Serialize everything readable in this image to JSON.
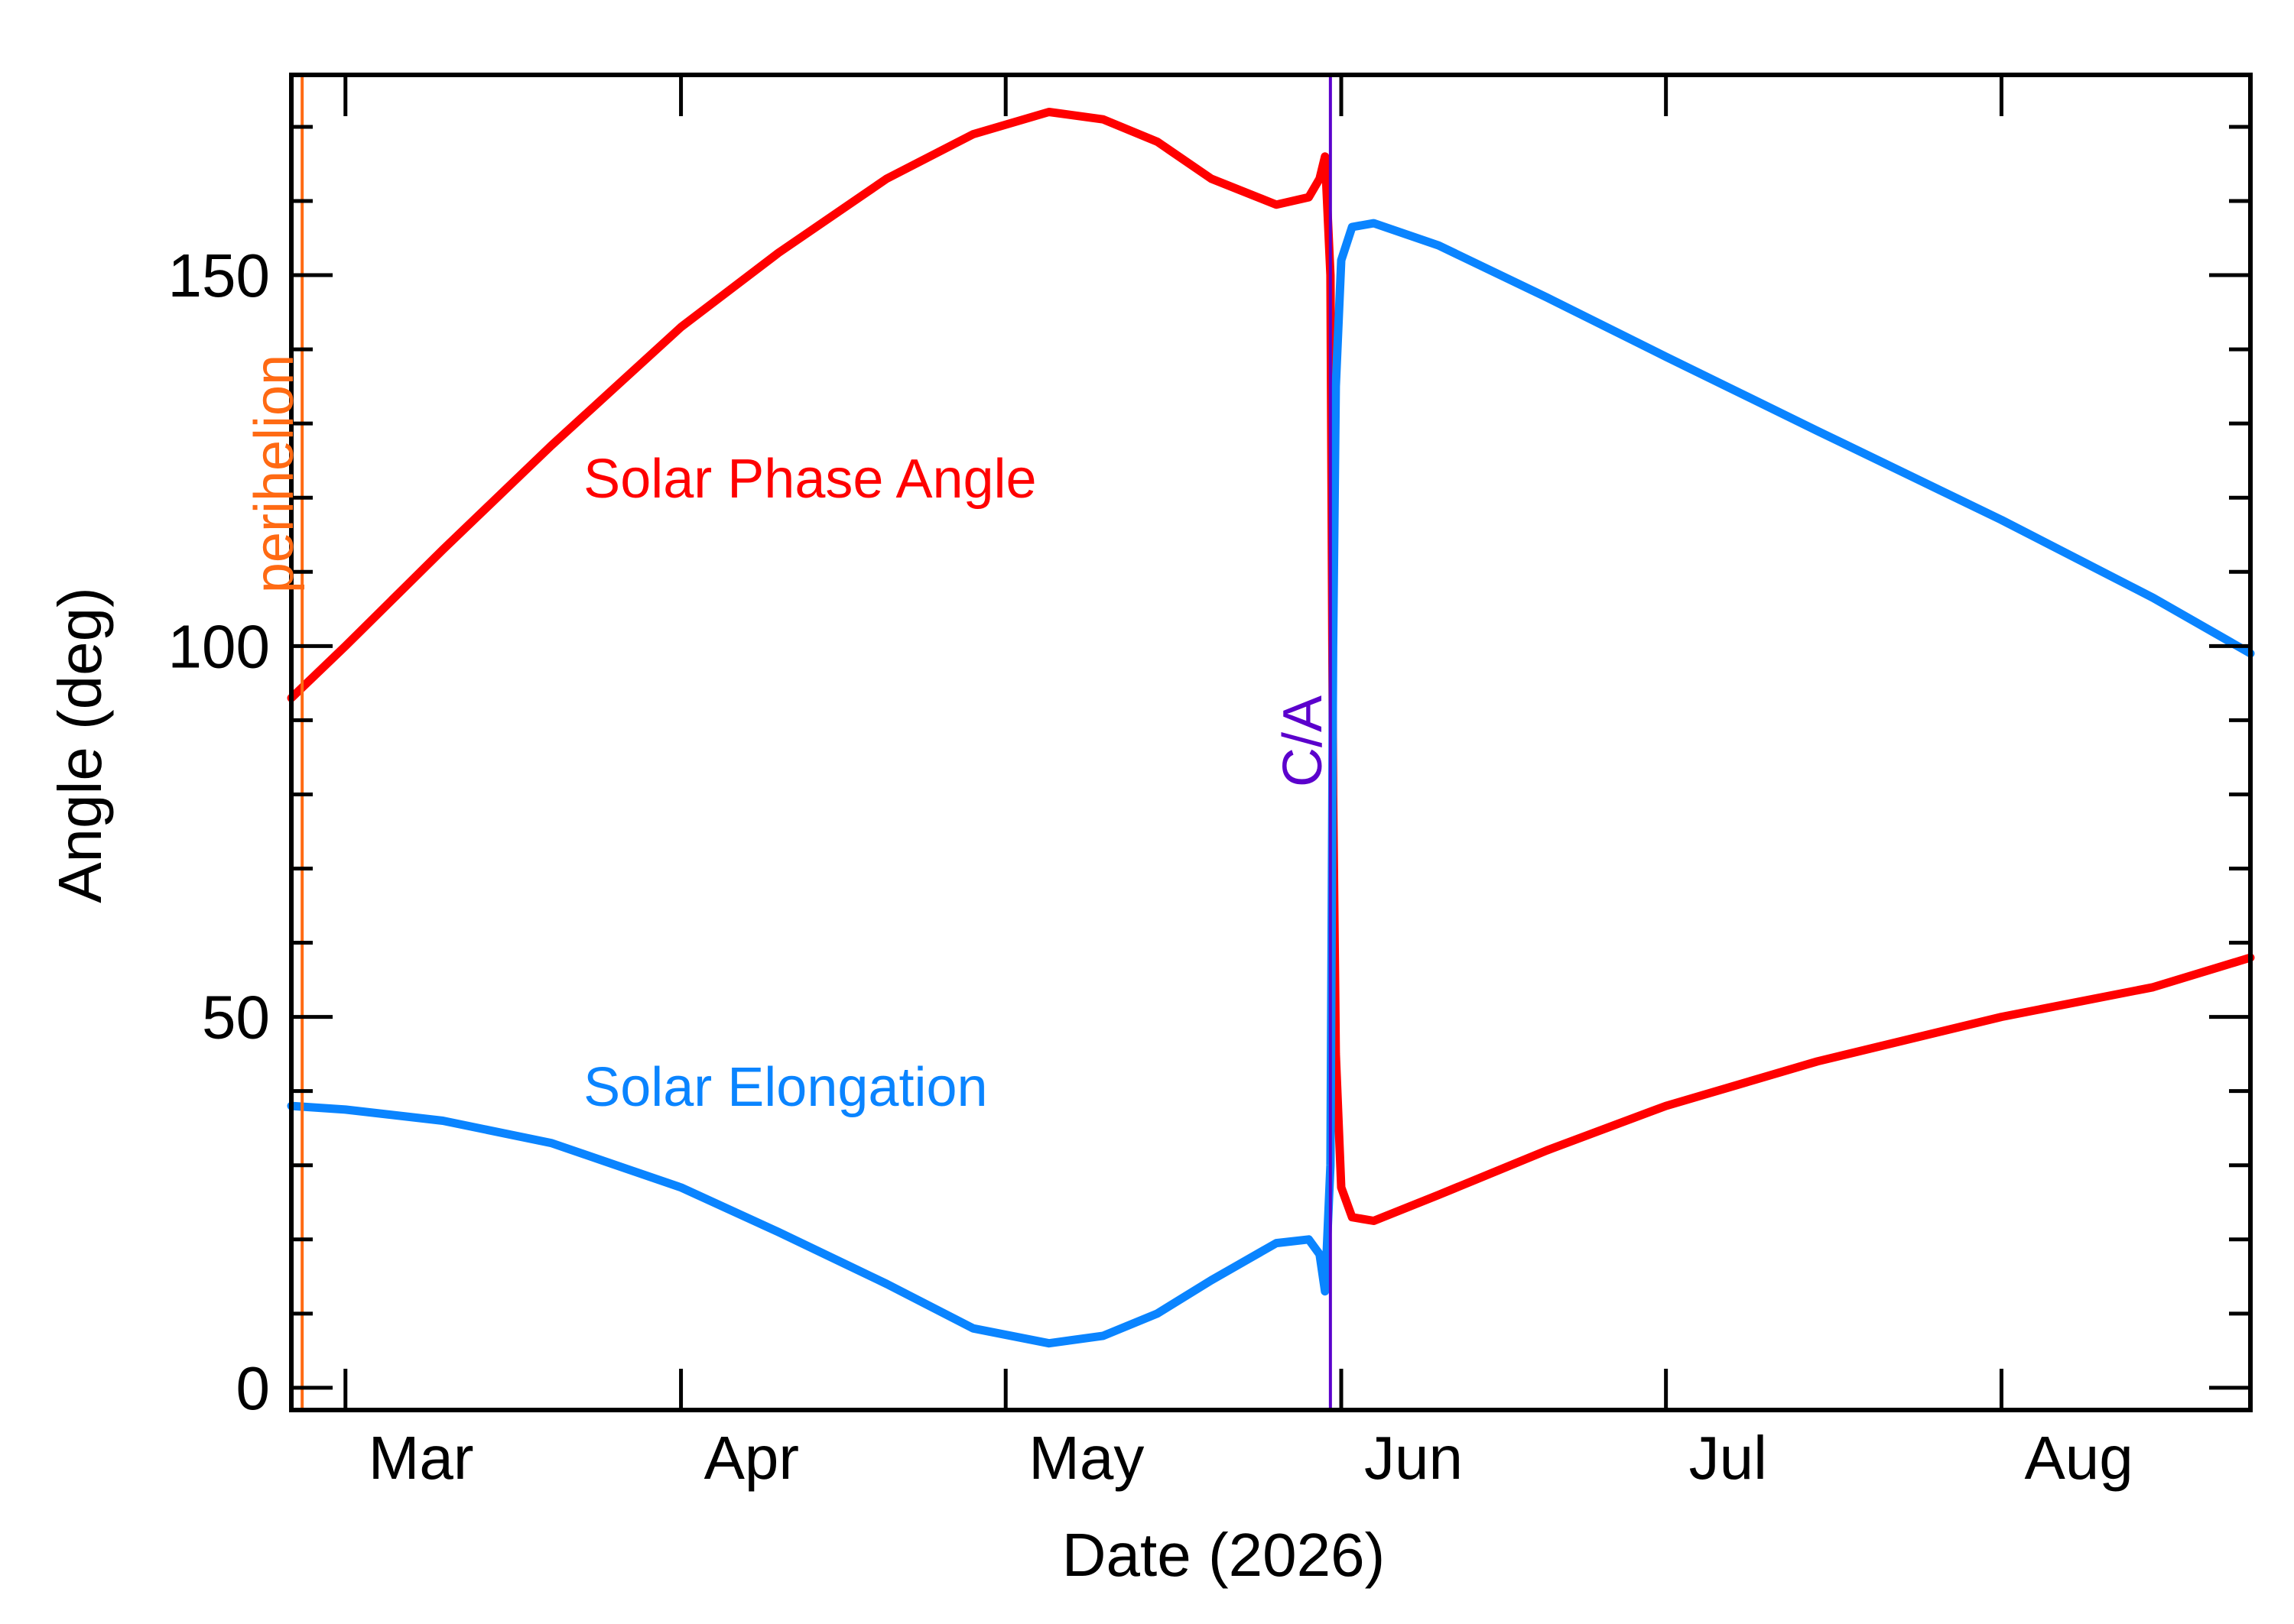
{
  "chart_data": {
    "type": "line",
    "xlabel": "Date (2026)",
    "ylabel": "Angle (deg)",
    "xlim": [
      "2026-02-24",
      "2026-08-24"
    ],
    "ylim": [
      -3,
      177
    ],
    "x_ticks": [
      {
        "date": "2026-03-01",
        "label": "Mar"
      },
      {
        "date": "2026-04-01",
        "label": "Apr"
      },
      {
        "date": "2026-05-01",
        "label": "May"
      },
      {
        "date": "2026-06-01",
        "label": "Jun"
      },
      {
        "date": "2026-07-01",
        "label": "Jul"
      },
      {
        "date": "2026-08-01",
        "label": "Aug"
      }
    ],
    "x_minor_tick_dates": [],
    "y_ticks": [
      {
        "value": 0,
        "label": "0"
      },
      {
        "value": 50,
        "label": "50"
      },
      {
        "value": 100,
        "label": "100"
      },
      {
        "value": 150,
        "label": "150"
      }
    ],
    "y_minor_step": 10,
    "series": [
      {
        "name": "Solar Phase Angle",
        "color": "#ff0000",
        "points": [
          [
            "2026-02-24",
            93
          ],
          [
            "2026-03-01",
            100
          ],
          [
            "2026-03-10",
            113
          ],
          [
            "2026-03-20",
            127
          ],
          [
            "2026-04-01",
            143
          ],
          [
            "2026-04-10",
            153
          ],
          [
            "2026-04-20",
            163
          ],
          [
            "2026-04-28",
            169
          ],
          [
            "2026-05-05",
            172
          ],
          [
            "2026-05-10",
            171
          ],
          [
            "2026-05-15",
            168
          ],
          [
            "2026-05-20",
            163
          ],
          [
            "2026-05-26",
            159.5
          ],
          [
            "2026-05-29",
            160.5
          ],
          [
            "2026-05-30",
            163
          ],
          [
            "2026-05-30T12:00",
            166
          ],
          [
            "2026-05-31",
            150
          ],
          [
            "2026-05-31T06:00",
            80
          ],
          [
            "2026-05-31T12:00",
            45
          ],
          [
            "2026-06-01",
            27
          ],
          [
            "2026-06-02",
            23
          ],
          [
            "2026-06-04",
            22.5
          ],
          [
            "2026-06-10",
            26
          ],
          [
            "2026-06-20",
            32
          ],
          [
            "2026-07-01",
            38
          ],
          [
            "2026-07-15",
            44
          ],
          [
            "2026-08-01",
            50
          ],
          [
            "2026-08-15",
            54
          ],
          [
            "2026-08-24",
            58
          ]
        ]
      },
      {
        "name": "Solar Elongation",
        "color": "#0a84ff",
        "points": [
          [
            "2026-02-24",
            38
          ],
          [
            "2026-03-01",
            37.5
          ],
          [
            "2026-03-10",
            36
          ],
          [
            "2026-03-20",
            33
          ],
          [
            "2026-04-01",
            27
          ],
          [
            "2026-04-10",
            21
          ],
          [
            "2026-04-20",
            14
          ],
          [
            "2026-04-28",
            8
          ],
          [
            "2026-05-05",
            6
          ],
          [
            "2026-05-10",
            7
          ],
          [
            "2026-05-15",
            10
          ],
          [
            "2026-05-20",
            14.5
          ],
          [
            "2026-05-26",
            19.5
          ],
          [
            "2026-05-29",
            20
          ],
          [
            "2026-05-30",
            18
          ],
          [
            "2026-05-30T12:00",
            13
          ],
          [
            "2026-05-31",
            30
          ],
          [
            "2026-05-31T06:00",
            100
          ],
          [
            "2026-05-31T12:00",
            135
          ],
          [
            "2026-06-01",
            152
          ],
          [
            "2026-06-02",
            156.5
          ],
          [
            "2026-06-04",
            157
          ],
          [
            "2026-06-10",
            154
          ],
          [
            "2026-06-20",
            147
          ],
          [
            "2026-07-01",
            139
          ],
          [
            "2026-07-15",
            129
          ],
          [
            "2026-08-01",
            117
          ],
          [
            "2026-08-15",
            106.5
          ],
          [
            "2026-08-24",
            99
          ]
        ]
      }
    ],
    "vlines": [
      {
        "date": "2026-02-25",
        "label": "perihelion",
        "color": "#ff6a13"
      },
      {
        "date": "2026-05-31",
        "label": "C/A",
        "color": "#5b00cc"
      }
    ],
    "annotations": [
      {
        "text": "Solar Phase Angle",
        "color": "#ff0000",
        "x": "2026-03-23",
        "y": 120
      },
      {
        "text": "Solar Elongation",
        "color": "#0a84ff",
        "x": "2026-03-23",
        "y": 38
      }
    ],
    "grid": false,
    "legend": "none"
  }
}
